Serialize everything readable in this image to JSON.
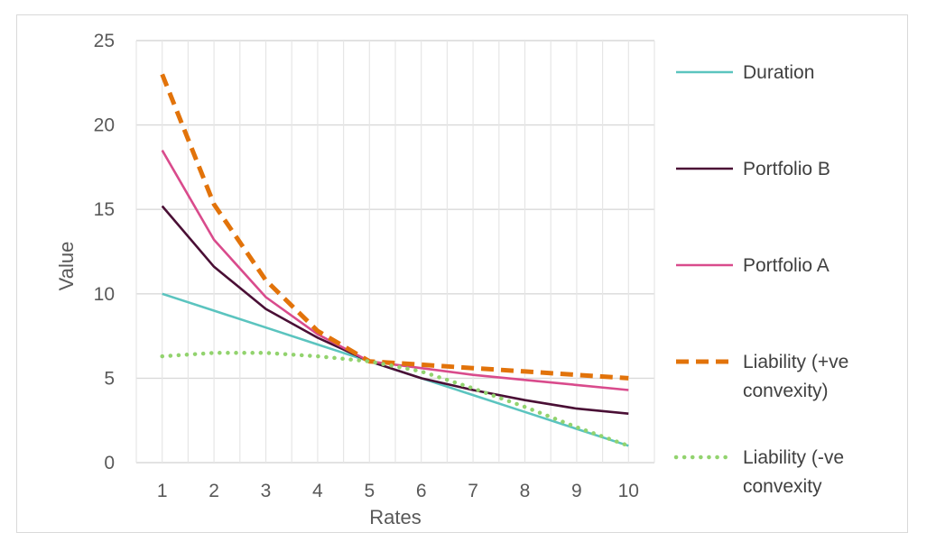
{
  "chart_data": {
    "type": "line",
    "title": "",
    "xlabel": "Rates",
    "ylabel": "Value",
    "x": [
      1,
      2,
      3,
      4,
      5,
      6,
      7,
      8,
      9,
      10
    ],
    "ylim": [
      0,
      25
    ],
    "yticks": [
      0,
      5,
      10,
      15,
      20,
      25
    ],
    "grid": {
      "horizontal": true,
      "vertical": true
    },
    "legend_position": "right",
    "series": [
      {
        "name": "Duration",
        "color": "#5bc4bf",
        "style": "solid",
        "values": [
          10.0,
          9.0,
          8.0,
          7.0,
          6.0,
          5.0,
          4.0,
          3.0,
          2.0,
          1.0
        ]
      },
      {
        "name": "Portfolio B",
        "color": "#4a0f35",
        "style": "solid",
        "values": [
          15.2,
          11.6,
          9.1,
          7.4,
          6.0,
          5.0,
          4.3,
          3.7,
          3.2,
          2.9
        ]
      },
      {
        "name": "Portfolio A",
        "color": "#d94b8c",
        "style": "solid",
        "values": [
          18.5,
          13.2,
          9.8,
          7.6,
          6.0,
          5.6,
          5.2,
          4.9,
          4.6,
          4.3
        ]
      },
      {
        "name": "Liability (+ve convexity)",
        "color": "#e2730a",
        "style": "dashed",
        "values": [
          23.0,
          15.3,
          10.8,
          7.8,
          6.0,
          5.8,
          5.6,
          5.4,
          5.2,
          5.0
        ]
      },
      {
        "name": "Liability (-ve convexity",
        "color": "#92d36e",
        "style": "dotted",
        "values": [
          6.3,
          6.5,
          6.5,
          6.3,
          6.0,
          5.4,
          4.4,
          3.3,
          2.1,
          1.0
        ]
      }
    ]
  }
}
